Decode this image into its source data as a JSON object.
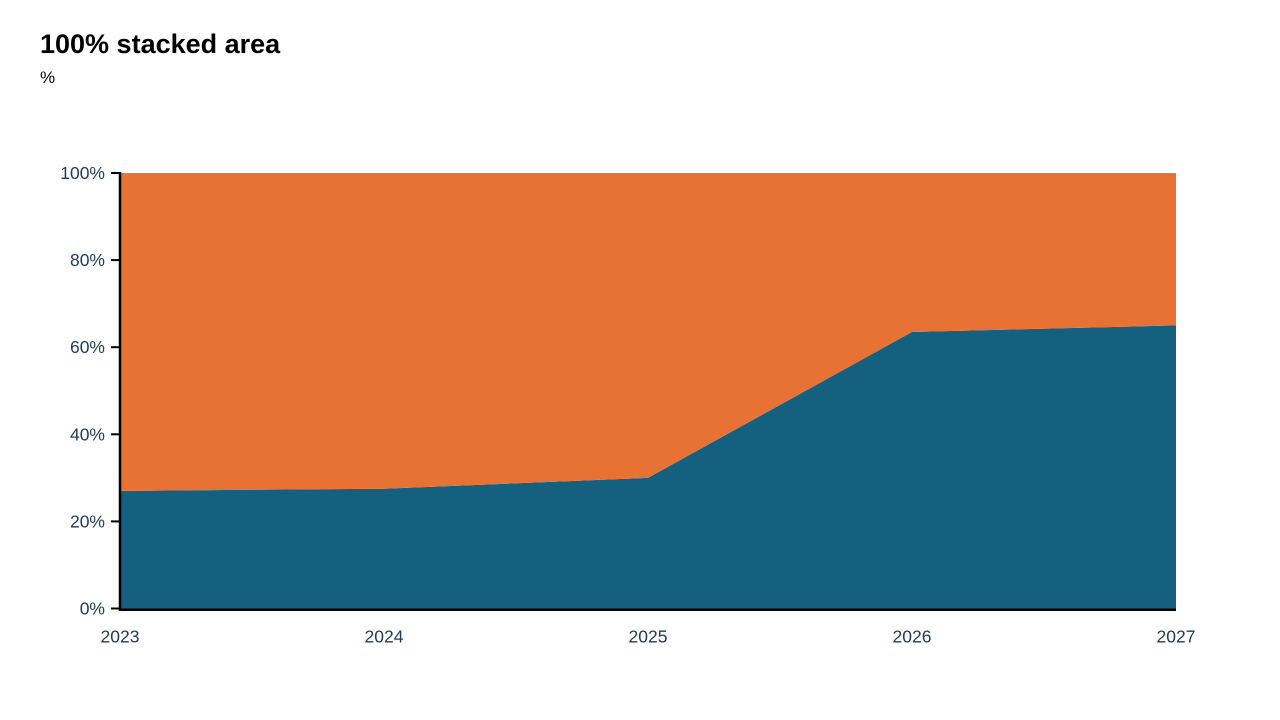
{
  "header": {
    "title": "100% stacked area",
    "subtitle": "%"
  },
  "chart_data": {
    "type": "area",
    "stacking": "percent",
    "title": "100% stacked area",
    "ylabel": "%",
    "categories": [
      "2023",
      "2024",
      "2025",
      "2026",
      "2027"
    ],
    "series": [
      {
        "name": "blue-area",
        "color": "#155F7F",
        "values": [
          27,
          27.5,
          30,
          63.5,
          65
        ]
      },
      {
        "name": "orange-area",
        "color": "#E87233",
        "values": [
          73,
          72.5,
          70,
          36.5,
          35
        ]
      }
    ],
    "ylim": [
      0,
      100
    ],
    "yticks": [
      "0%",
      "20%",
      "40%",
      "60%",
      "80%",
      "100%"
    ],
    "ytick_values": [
      0,
      20,
      40,
      60,
      80,
      100
    ],
    "grid": false,
    "legend": "none",
    "axis_color": "#000000",
    "tick_label_color": "#1F3B57"
  }
}
